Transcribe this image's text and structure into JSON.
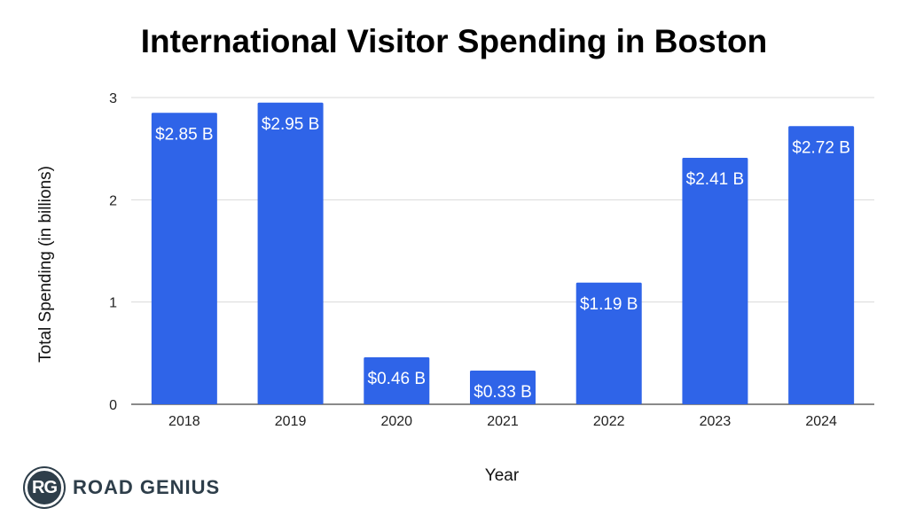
{
  "chart_data": {
    "type": "bar",
    "title": "International Visitor Spending in Boston",
    "xlabel": "Year",
    "ylabel": "Total Spending (in billions)",
    "categories": [
      "2018",
      "2019",
      "2020",
      "2021",
      "2022",
      "2023",
      "2024"
    ],
    "values": [
      2.85,
      2.95,
      0.46,
      0.33,
      1.19,
      2.41,
      2.72
    ],
    "data_labels": [
      "$2.85 B",
      "$2.95 B",
      "$0.46 B",
      "$0.33 B",
      "$1.19 B",
      "$2.41 B",
      "$2.72 B"
    ],
    "yticks": [
      "0",
      "1",
      "2",
      "3"
    ],
    "ylim": [
      0,
      3
    ],
    "grid": true,
    "legend": "none",
    "bar_color": "#2f64e8",
    "grid_color": "#d9d9d9"
  },
  "branding": {
    "logo_initials": "RG",
    "logo_text": "ROAD GENIUS"
  }
}
